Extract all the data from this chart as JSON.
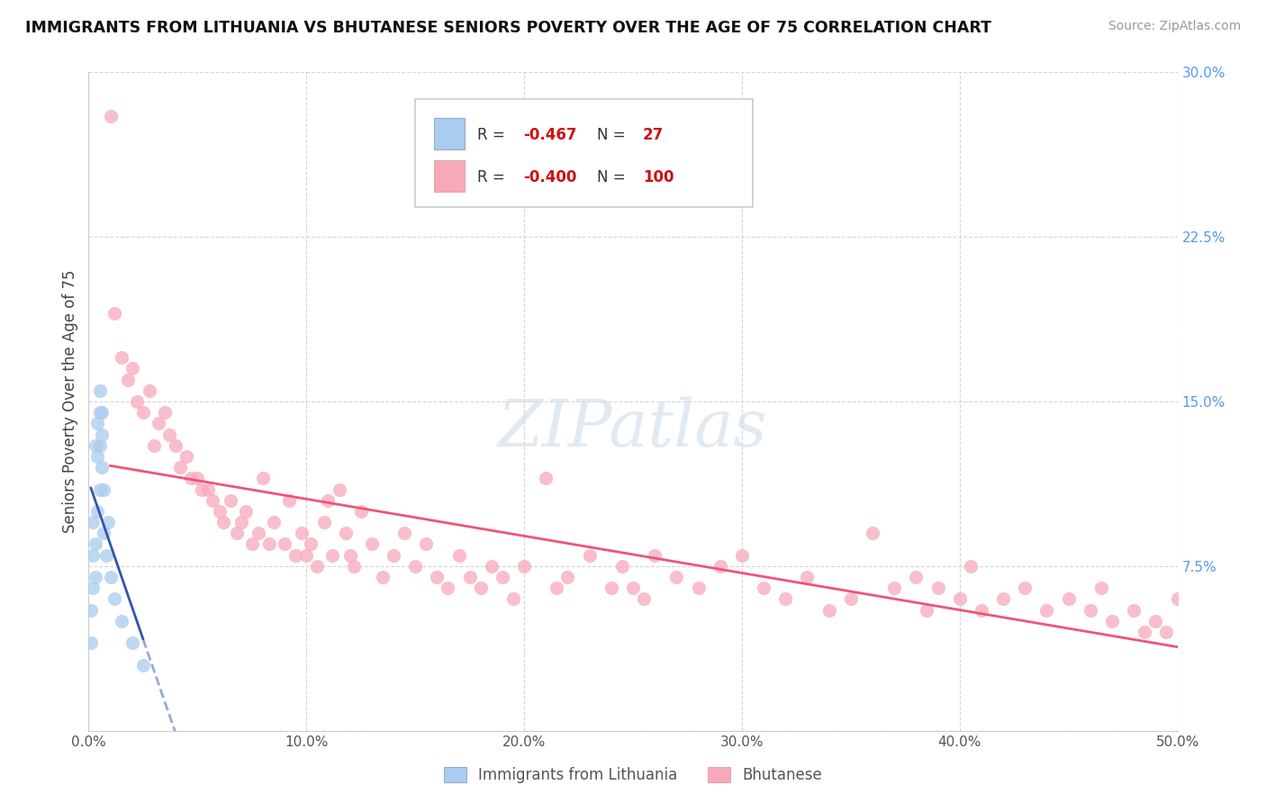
{
  "title": "IMMIGRANTS FROM LITHUANIA VS BHUTANESE SENIORS POVERTY OVER THE AGE OF 75 CORRELATION CHART",
  "source": "Source: ZipAtlas.com",
  "ylabel": "Seniors Poverty Over the Age of 75",
  "xlim": [
    0.0,
    0.5
  ],
  "ylim": [
    0.0,
    0.3
  ],
  "xticks": [
    0.0,
    0.1,
    0.2,
    0.3,
    0.4,
    0.5
  ],
  "yticks": [
    0.0,
    0.075,
    0.15,
    0.225,
    0.3
  ],
  "ytick_labels": [
    "",
    "7.5%",
    "15.0%",
    "22.5%",
    "30.0%"
  ],
  "xtick_labels": [
    "0.0%",
    "10.0%",
    "20.0%",
    "30.0%",
    "40.0%",
    "50.0%"
  ],
  "legend_label1": "Immigrants from Lithuania",
  "legend_label2": "Bhutanese",
  "R1": -0.467,
  "N1": 27,
  "R2": -0.4,
  "N2": 100,
  "color1": "#aaccee",
  "color2": "#f8a8bb",
  "line_color1": "#3355aa",
  "line_color2": "#ee5577",
  "watermark_text": "ZIPatlas",
  "lithuania_x": [
    0.001,
    0.001,
    0.002,
    0.002,
    0.002,
    0.003,
    0.003,
    0.003,
    0.004,
    0.004,
    0.004,
    0.005,
    0.005,
    0.005,
    0.005,
    0.006,
    0.006,
    0.006,
    0.007,
    0.007,
    0.008,
    0.009,
    0.01,
    0.012,
    0.015,
    0.02,
    0.025
  ],
  "lithuania_y": [
    0.04,
    0.055,
    0.065,
    0.08,
    0.095,
    0.07,
    0.085,
    0.13,
    0.1,
    0.125,
    0.14,
    0.11,
    0.13,
    0.145,
    0.155,
    0.12,
    0.135,
    0.145,
    0.09,
    0.11,
    0.08,
    0.095,
    0.07,
    0.06,
    0.05,
    0.04,
    0.03
  ],
  "bhutanese_x": [
    0.01,
    0.012,
    0.015,
    0.018,
    0.02,
    0.022,
    0.025,
    0.028,
    0.03,
    0.032,
    0.035,
    0.037,
    0.04,
    0.042,
    0.045,
    0.047,
    0.05,
    0.052,
    0.055,
    0.057,
    0.06,
    0.062,
    0.065,
    0.068,
    0.07,
    0.072,
    0.075,
    0.078,
    0.08,
    0.083,
    0.085,
    0.09,
    0.092,
    0.095,
    0.098,
    0.1,
    0.102,
    0.105,
    0.108,
    0.11,
    0.112,
    0.115,
    0.118,
    0.12,
    0.122,
    0.125,
    0.13,
    0.135,
    0.14,
    0.145,
    0.15,
    0.155,
    0.16,
    0.165,
    0.17,
    0.175,
    0.18,
    0.185,
    0.19,
    0.195,
    0.2,
    0.21,
    0.215,
    0.22,
    0.23,
    0.24,
    0.245,
    0.25,
    0.255,
    0.26,
    0.27,
    0.28,
    0.29,
    0.3,
    0.31,
    0.32,
    0.33,
    0.34,
    0.35,
    0.36,
    0.37,
    0.38,
    0.385,
    0.39,
    0.4,
    0.405,
    0.41,
    0.42,
    0.43,
    0.44,
    0.45,
    0.46,
    0.465,
    0.47,
    0.48,
    0.485,
    0.49,
    0.495,
    0.5,
    0.505
  ],
  "bhutanese_y": [
    0.28,
    0.19,
    0.17,
    0.16,
    0.165,
    0.15,
    0.145,
    0.155,
    0.13,
    0.14,
    0.145,
    0.135,
    0.13,
    0.12,
    0.125,
    0.115,
    0.115,
    0.11,
    0.11,
    0.105,
    0.1,
    0.095,
    0.105,
    0.09,
    0.095,
    0.1,
    0.085,
    0.09,
    0.115,
    0.085,
    0.095,
    0.085,
    0.105,
    0.08,
    0.09,
    0.08,
    0.085,
    0.075,
    0.095,
    0.105,
    0.08,
    0.11,
    0.09,
    0.08,
    0.075,
    0.1,
    0.085,
    0.07,
    0.08,
    0.09,
    0.075,
    0.085,
    0.07,
    0.065,
    0.08,
    0.07,
    0.065,
    0.075,
    0.07,
    0.06,
    0.075,
    0.115,
    0.065,
    0.07,
    0.08,
    0.065,
    0.075,
    0.065,
    0.06,
    0.08,
    0.07,
    0.065,
    0.075,
    0.08,
    0.065,
    0.06,
    0.07,
    0.055,
    0.06,
    0.09,
    0.065,
    0.07,
    0.055,
    0.065,
    0.06,
    0.075,
    0.055,
    0.06,
    0.065,
    0.055,
    0.06,
    0.055,
    0.065,
    0.05,
    0.055,
    0.045,
    0.05,
    0.045,
    0.06,
    0.055
  ]
}
